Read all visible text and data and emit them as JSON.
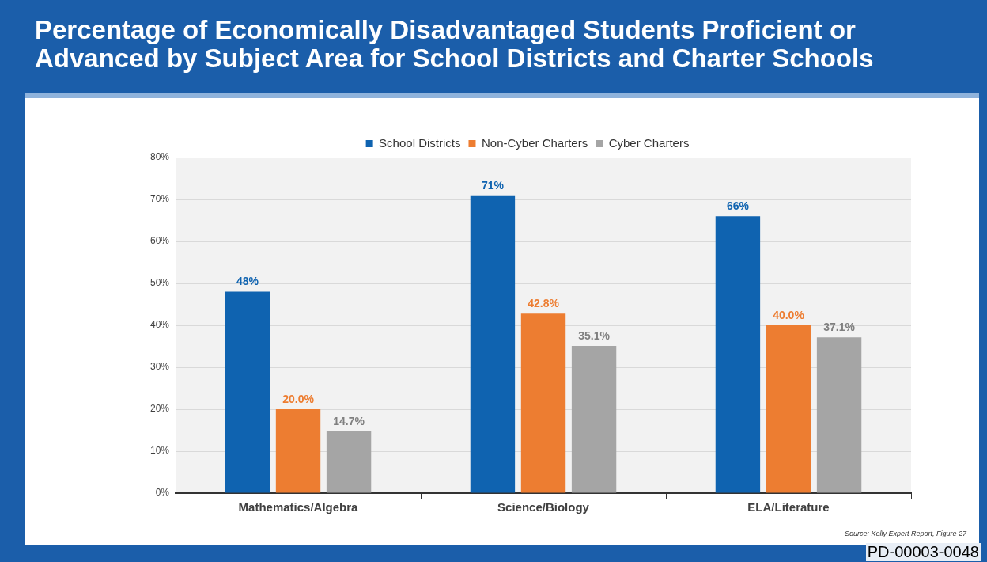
{
  "chart_data": {
    "type": "bar",
    "title": "Percentage of Economically Disadvantaged Students Proficient or Advanced by Subject Area for School Districts and Charter Schools",
    "categories": [
      "Mathematics/Algebra",
      "Science/Biology",
      "ELA/Literature"
    ],
    "series": [
      {
        "name": "School Districts",
        "color": "#0f63b0",
        "values": [
          48,
          71,
          66
        ],
        "value_labels": [
          "48%",
          "71%",
          "66%"
        ]
      },
      {
        "name": "Non-Cyber Charters",
        "color": "#ed7d31",
        "values": [
          20.0,
          42.8,
          40.0
        ],
        "value_labels": [
          "20.0%",
          "42.8%",
          "40.0%"
        ]
      },
      {
        "name": "Cyber Charters",
        "color": "#a5a5a5",
        "values": [
          14.7,
          35.1,
          37.1
        ],
        "value_labels": [
          "14.7%",
          "35.1%",
          "37.1%"
        ]
      }
    ],
    "ylim": [
      0,
      80
    ],
    "yticks": [
      {
        "value": 0,
        "label": "0%"
      },
      {
        "value": 10,
        "label": "10%"
      },
      {
        "value": 20,
        "label": "20%"
      },
      {
        "value": 30,
        "label": "30%"
      },
      {
        "value": 40,
        "label": "40%"
      },
      {
        "value": 50,
        "label": "50%"
      },
      {
        "value": 60,
        "label": "60%"
      },
      {
        "value": 70,
        "label": "70%"
      },
      {
        "value": 80,
        "label": "80%"
      }
    ],
    "grid": "y",
    "legend": "top",
    "annotations": [
      "Source: Kelly Expert Report, Figure 27",
      "PD-00003-0048"
    ]
  }
}
